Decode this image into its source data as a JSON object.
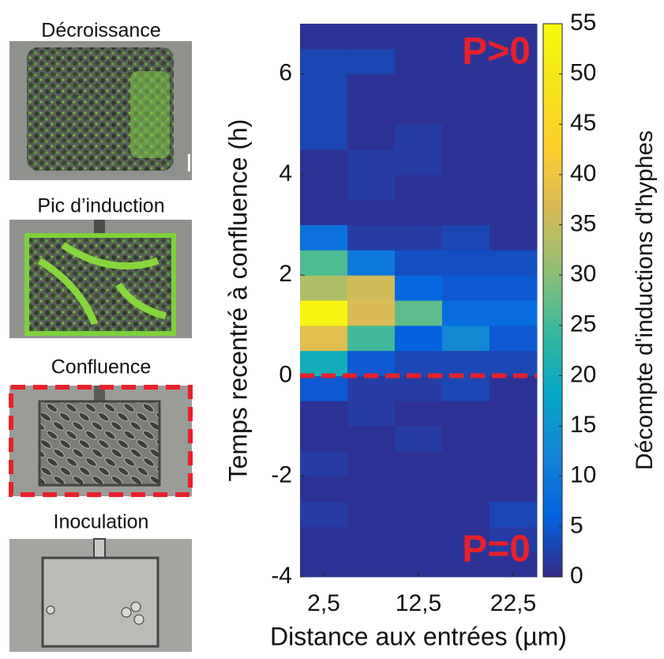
{
  "panels": [
    {
      "label": "Décroissance"
    },
    {
      "label": "Pic d’induction"
    },
    {
      "label": "Confluence"
    },
    {
      "label": "Inoculation"
    }
  ],
  "chart_data": {
    "type": "heatmap",
    "xlabel": "Distance aux entrées (µm)",
    "ylabel": "Temps recentré à confluence (h)",
    "colorbar_label": "Décompte d'inductions d'hyphes",
    "annotations": [
      {
        "text": "P>0",
        "color": "#e8202a"
      },
      {
        "text": "P=0",
        "color": "#e8202a"
      }
    ],
    "hline": {
      "value": 0,
      "color": "#e8202a"
    },
    "x": [
      2.5,
      7.5,
      12.5,
      17.5,
      22.5
    ],
    "y": [
      -3.75,
      -3.25,
      -2.75,
      -2.25,
      -1.75,
      -1.25,
      -0.75,
      -0.25,
      0.25,
      0.75,
      1.25,
      1.75,
      2.25,
      2.75,
      3.25,
      3.75,
      4.25,
      4.75,
      5.25,
      5.75,
      6.25,
      6.75
    ],
    "values": [
      [
        1,
        1,
        1,
        1,
        1
      ],
      [
        1,
        1,
        1,
        1,
        2
      ],
      [
        2,
        1,
        1,
        1,
        3
      ],
      [
        1,
        1,
        1,
        1,
        1
      ],
      [
        2,
        1,
        1,
        1,
        1
      ],
      [
        1,
        1,
        2,
        1,
        1
      ],
      [
        1,
        2,
        1,
        1,
        1
      ],
      [
        5,
        2,
        2,
        3,
        1
      ],
      [
        20,
        5,
        3,
        3,
        3
      ],
      [
        38,
        25,
        6,
        13,
        5
      ],
      [
        53,
        37,
        27,
        8,
        8
      ],
      [
        33,
        36,
        7,
        5,
        5
      ],
      [
        26,
        10,
        4,
        4,
        4
      ],
      [
        9,
        2,
        2,
        3,
        1
      ],
      [
        1,
        1,
        1,
        1,
        1
      ],
      [
        1,
        2,
        1,
        1,
        1
      ],
      [
        1,
        2,
        2,
        1,
        1
      ],
      [
        3,
        1,
        2,
        1,
        1
      ],
      [
        3,
        1,
        1,
        1,
        1
      ],
      [
        3,
        1,
        1,
        1,
        1
      ],
      [
        3,
        3,
        1,
        1,
        1
      ],
      [
        1,
        1,
        1,
        1,
        1
      ]
    ],
    "xlim": [
      0,
      25
    ],
    "xticks": [
      {
        "value": 2.5,
        "label": "2,5"
      },
      {
        "value": 12.5,
        "label": "12,5"
      },
      {
        "value": 22.5,
        "label": "22,5"
      }
    ],
    "ylim": [
      -4,
      7
    ],
    "yticks": [
      -4,
      -2,
      0,
      2,
      4,
      6
    ],
    "clim": [
      0,
      55
    ],
    "cticks": [
      0,
      5,
      10,
      15,
      20,
      25,
      30,
      35,
      40,
      45,
      50,
      55
    ],
    "colormap": [
      "#352a87",
      "#0363e1",
      "#1485d4",
      "#06a7c6",
      "#38b99e",
      "#92bf73",
      "#d9ba56",
      "#fcce2e",
      "#f5e41d",
      "#f9fb0e"
    ]
  }
}
